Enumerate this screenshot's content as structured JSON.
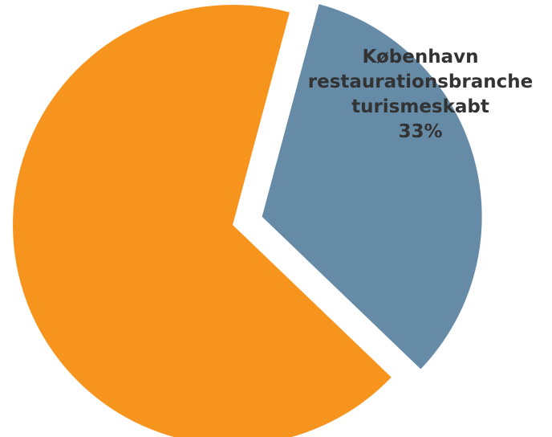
{
  "chart_data": {
    "type": "pie",
    "slices": [
      {
        "label": "",
        "value": 67,
        "color": "#f7941d",
        "exploded": false
      },
      {
        "label": "København restaurationsbranche turismeskabt",
        "label_lines": [
          "København",
          "restaurationsbranche",
          "turismeskabt"
        ],
        "value": 33,
        "value_label": "33%",
        "color": "#668ba7",
        "exploded": true
      }
    ],
    "legend": "none"
  }
}
